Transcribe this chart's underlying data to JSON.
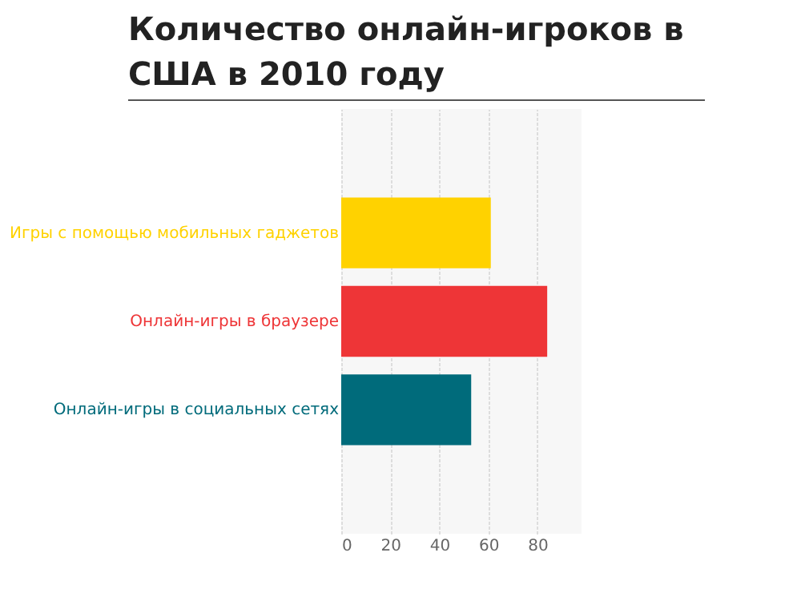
{
  "chart_data": {
    "type": "bar",
    "orientation": "horizontal",
    "title": "Количество онлайн-игроков в США в 2010 году",
    "categories": [
      "Игры с помощью мобильных гаджетов",
      "Онлайн-игры в браузере",
      "Онлайн-игры в социальных сетях"
    ],
    "values": [
      61,
      84,
      53
    ],
    "colors": [
      "#ffd200",
      "#ee3537",
      "#006b7b"
    ],
    "xlim": [
      0,
      98
    ],
    "xticks": [
      0,
      20,
      40,
      60,
      80
    ],
    "grid": "x"
  }
}
